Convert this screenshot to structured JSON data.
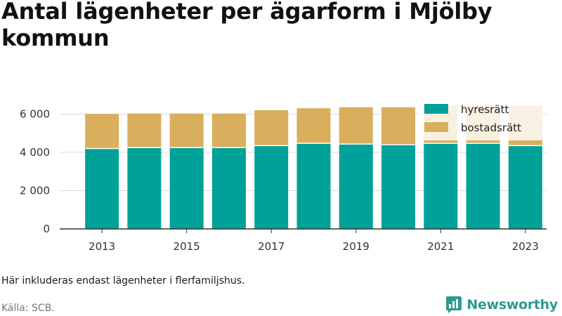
{
  "title": "Antal lägenheter per ägarform i Mjölby kommun",
  "note": "Här inkluderas endast lägenheter i flerfamiljshus.",
  "source": "Källa: SCB.",
  "brand": {
    "name": "Newsworthy",
    "icon": "newsworthy-logo-icon",
    "color": "#2e9a90"
  },
  "chart_data": {
    "type": "bar",
    "stacked": true,
    "categories": [
      "2013",
      "2014",
      "2015",
      "2016",
      "2017",
      "2018",
      "2019",
      "2020",
      "2021",
      "2022",
      "2023"
    ],
    "x_tick_labels": [
      "2013",
      "2015",
      "2017",
      "2019",
      "2021",
      "2023"
    ],
    "series": [
      {
        "name": "hyresrätt",
        "color": "#00a199",
        "values": [
          4200,
          4250,
          4250,
          4250,
          4350,
          4470,
          4430,
          4400,
          4470,
          4470,
          4350
        ]
      },
      {
        "name": "bostadsrätt",
        "color": "#d9ae5c",
        "values": [
          1800,
          1770,
          1770,
          1770,
          1850,
          1830,
          1920,
          1950,
          1970,
          1970,
          2070
        ]
      }
    ],
    "ylim": [
      0,
      6600
    ],
    "y_ticks": [
      0,
      2000,
      4000,
      6000
    ],
    "y_tick_labels": [
      "0",
      "2 000",
      "4 000",
      "6 000"
    ],
    "grid": "horizontal",
    "legend": "top-right",
    "xlabel": "",
    "ylabel": ""
  }
}
